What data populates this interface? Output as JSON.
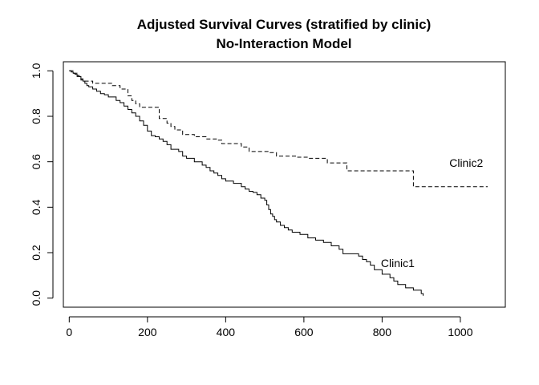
{
  "chart_data": {
    "type": "line",
    "title": "Adjusted Survival Curves (stratified by clinic)",
    "subtitle": "No-Interaction Model",
    "xlabel": "",
    "ylabel": "",
    "xlim": [
      -15,
      1115
    ],
    "ylim": [
      -0.04,
      1.04
    ],
    "x_ticks": [
      0,
      200,
      400,
      600,
      800,
      1000
    ],
    "x_tick_labels": [
      "0",
      "200",
      "400",
      "600",
      "800",
      "1000"
    ],
    "y_ticks": [
      0.0,
      0.2,
      0.4,
      0.6,
      0.8,
      1.0
    ],
    "y_tick_labels": [
      "0.0",
      "0.2",
      "0.4",
      "0.6",
      "0.8",
      "1.0"
    ],
    "grid": false,
    "legend": "none",
    "series": [
      {
        "name": "Clinic1",
        "line_style": "solid",
        "color": "#000000",
        "label_position": {
          "x": 840,
          "y": 0.155
        },
        "x": [
          0,
          5,
          10,
          15,
          20,
          25,
          30,
          35,
          40,
          45,
          50,
          60,
          70,
          80,
          90,
          100,
          120,
          130,
          140,
          150,
          160,
          170,
          180,
          190,
          200,
          210,
          220,
          230,
          240,
          250,
          260,
          280,
          290,
          300,
          320,
          340,
          350,
          360,
          370,
          380,
          390,
          400,
          420,
          440,
          450,
          460,
          470,
          480,
          490,
          500,
          505,
          510,
          515,
          520,
          525,
          530,
          540,
          550,
          560,
          570,
          590,
          610,
          630,
          650,
          670,
          690,
          700,
          740,
          750,
          760,
          770,
          780,
          800,
          820,
          830,
          840,
          860,
          880,
          900,
          905
        ],
        "y": [
          1.0,
          0.995,
          0.99,
          0.985,
          0.98,
          0.975,
          0.965,
          0.955,
          0.945,
          0.935,
          0.93,
          0.92,
          0.91,
          0.9,
          0.895,
          0.885,
          0.87,
          0.86,
          0.845,
          0.83,
          0.815,
          0.8,
          0.78,
          0.76,
          0.735,
          0.715,
          0.71,
          0.7,
          0.69,
          0.675,
          0.655,
          0.645,
          0.625,
          0.615,
          0.6,
          0.585,
          0.575,
          0.56,
          0.55,
          0.54,
          0.525,
          0.515,
          0.505,
          0.49,
          0.48,
          0.47,
          0.465,
          0.455,
          0.44,
          0.43,
          0.41,
          0.39,
          0.37,
          0.36,
          0.345,
          0.335,
          0.32,
          0.31,
          0.3,
          0.29,
          0.28,
          0.265,
          0.255,
          0.245,
          0.23,
          0.215,
          0.195,
          0.185,
          0.17,
          0.16,
          0.145,
          0.125,
          0.105,
          0.09,
          0.075,
          0.06,
          0.045,
          0.035,
          0.02,
          0.01
        ]
      },
      {
        "name": "Clinic2",
        "line_style": "dashed",
        "color": "#000000",
        "label_position": {
          "x": 1015,
          "y": 0.595
        },
        "x": [
          0,
          10,
          20,
          30,
          40,
          60,
          110,
          130,
          150,
          160,
          170,
          180,
          230,
          250,
          260,
          270,
          290,
          320,
          350,
          380,
          390,
          440,
          460,
          510,
          530,
          580,
          610,
          660,
          710,
          760,
          880,
          1070
        ],
        "y": [
          1.0,
          0.99,
          0.975,
          0.96,
          0.955,
          0.945,
          0.935,
          0.92,
          0.89,
          0.87,
          0.855,
          0.84,
          0.79,
          0.77,
          0.755,
          0.74,
          0.72,
          0.71,
          0.7,
          0.695,
          0.68,
          0.665,
          0.645,
          0.64,
          0.625,
          0.62,
          0.615,
          0.595,
          0.56,
          0.56,
          0.49,
          0.49
        ]
      }
    ]
  }
}
